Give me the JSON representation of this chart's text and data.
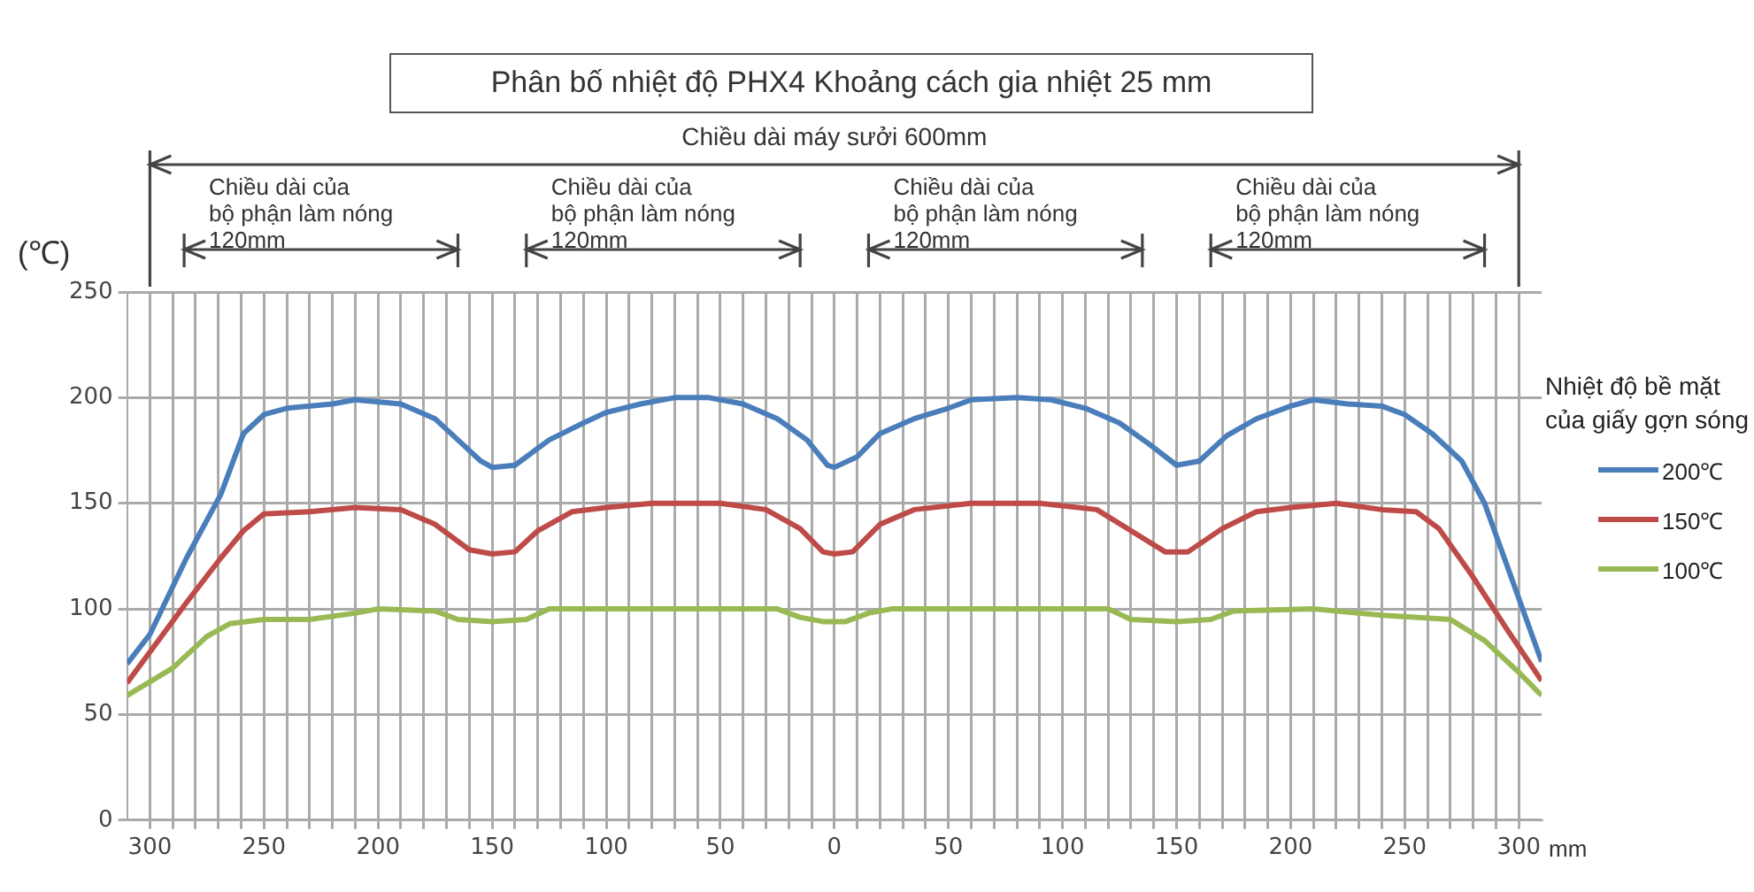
{
  "chart_data": {
    "type": "line",
    "title": "Phân bố nhiệt độ PHX4 Khoảng cách gia nhiệt 25 mm",
    "xlabel": "mm",
    "ylabel": "(℃)",
    "legend_title": "Nhiệt độ bề mặt của giấy gợn sóng",
    "legend": "right",
    "grid": true,
    "annotations": [
      "Chiều dài máy sưởi 600mm",
      "Chiều dài của\nbộ phận làm nóng\n120mm",
      "Chiều dài của\nbộ phận làm nóng\n120mm",
      "Chiều dài của\nbộ phận làm nóng\n120mm",
      "Chiều dài của\nbộ phận làm nóng\n120mm"
    ],
    "xlim": [
      -310,
      310
    ],
    "ylim": [
      0,
      250
    ],
    "yticks": [
      0,
      50,
      100,
      150,
      200,
      250
    ],
    "xticks": [
      {
        "value": -300,
        "label": "300"
      },
      {
        "value": -290,
        "label": null
      },
      {
        "value": -280,
        "label": null
      },
      {
        "value": -270,
        "label": null
      },
      {
        "value": -260,
        "label": null
      },
      {
        "value": -250,
        "label": "250"
      },
      {
        "value": -240,
        "label": null
      },
      {
        "value": -230,
        "label": null
      },
      {
        "value": -220,
        "label": null
      },
      {
        "value": -210,
        "label": null
      },
      {
        "value": -200,
        "label": "200"
      },
      {
        "value": -190,
        "label": null
      },
      {
        "value": -180,
        "label": null
      },
      {
        "value": -170,
        "label": null
      },
      {
        "value": -160,
        "label": null
      },
      {
        "value": -150,
        "label": "150"
      },
      {
        "value": -140,
        "label": null
      },
      {
        "value": -130,
        "label": null
      },
      {
        "value": -120,
        "label": null
      },
      {
        "value": -110,
        "label": null
      },
      {
        "value": -100,
        "label": "100"
      },
      {
        "value": -90,
        "label": null
      },
      {
        "value": -80,
        "label": null
      },
      {
        "value": -70,
        "label": null
      },
      {
        "value": -60,
        "label": null
      },
      {
        "value": -50,
        "label": "50"
      },
      {
        "value": -40,
        "label": null
      },
      {
        "value": -30,
        "label": null
      },
      {
        "value": -20,
        "label": null
      },
      {
        "value": -10,
        "label": null
      },
      0,
      {
        "value": 10,
        "label": null
      },
      {
        "value": 20,
        "label": null
      },
      {
        "value": 30,
        "label": null
      },
      {
        "value": 40,
        "label": null
      },
      50,
      {
        "value": 60,
        "label": null
      },
      {
        "value": 70,
        "label": null
      },
      {
        "value": 80,
        "label": null
      },
      {
        "value": 90,
        "label": null
      },
      100,
      {
        "value": 110,
        "label": null
      },
      {
        "value": 120,
        "label": null
      },
      {
        "value": 130,
        "label": null
      },
      {
        "value": 140,
        "label": null
      },
      150,
      {
        "value": 160,
        "label": null
      },
      {
        "value": 170,
        "label": null
      },
      {
        "value": 180,
        "label": null
      },
      {
        "value": 190,
        "label": null
      },
      200,
      {
        "value": 210,
        "label": null
      },
      {
        "value": 220,
        "label": null
      },
      {
        "value": 230,
        "label": null
      },
      {
        "value": 240,
        "label": null
      },
      250,
      {
        "value": 260,
        "label": null
      },
      {
        "value": 270,
        "label": null
      },
      {
        "value": 280,
        "label": null
      },
      {
        "value": 290,
        "label": null
      },
      300
    ],
    "series": [
      {
        "name": "200℃",
        "color": "#4a7ebb",
        "x": [
          -310,
          -300,
          -284,
          -269,
          -259,
          -250,
          -240,
          -220,
          -210,
          -190,
          -175,
          -165,
          -155,
          -150,
          -140,
          -125,
          -110,
          -100,
          -85,
          -70,
          -55,
          -40,
          -25,
          -12,
          -3,
          0,
          10,
          20,
          35,
          50,
          60,
          80,
          95,
          110,
          125,
          138,
          150,
          160,
          172,
          185,
          200,
          210,
          225,
          240,
          250,
          262,
          275,
          285,
          295,
          305,
          310
        ],
        "values": [
          74,
          88,
          124,
          154,
          183,
          192,
          195,
          197,
          199,
          197,
          190,
          180,
          170,
          167,
          168,
          180,
          188,
          193,
          197,
          200,
          200,
          197,
          190,
          180,
          168,
          167,
          172,
          183,
          190,
          195,
          199,
          200,
          199,
          195,
          188,
          178,
          168,
          170,
          182,
          190,
          196,
          199,
          197,
          196,
          192,
          183,
          170,
          150,
          120,
          90,
          75
        ]
      },
      {
        "name": "150℃",
        "color": "#be4b48",
        "x": [
          -310,
          -284,
          -269,
          -259,
          -250,
          -230,
          -210,
          -190,
          -175,
          -160,
          -150,
          -140,
          -130,
          -115,
          -100,
          -80,
          -50,
          -30,
          -15,
          -5,
          0,
          8,
          20,
          35,
          60,
          90,
          115,
          130,
          145,
          155,
          170,
          185,
          200,
          220,
          240,
          255,
          265,
          280,
          295,
          310
        ],
        "values": [
          65,
          103,
          124,
          137,
          145,
          146,
          148,
          147,
          140,
          128,
          126,
          127,
          137,
          146,
          148,
          150,
          150,
          147,
          138,
          127,
          126,
          127,
          140,
          147,
          150,
          150,
          147,
          137,
          127,
          127,
          138,
          146,
          148,
          150,
          147,
          146,
          138,
          115,
          90,
          66
        ]
      },
      {
        "name": "100℃",
        "color": "#98b954",
        "x": [
          -310,
          -290,
          -275,
          -265,
          -250,
          -230,
          -210,
          -200,
          -175,
          -165,
          -150,
          -135,
          -125,
          -100,
          -25,
          -15,
          -5,
          5,
          15,
          25,
          120,
          130,
          150,
          165,
          175,
          210,
          240,
          270,
          285,
          300,
          310
        ],
        "values": [
          59,
          72,
          87,
          93,
          95,
          95,
          98,
          100,
          99,
          95,
          94,
          95,
          100,
          100,
          100,
          96,
          94,
          94,
          98,
          100,
          100,
          95,
          94,
          95,
          99,
          100,
          97,
          95,
          85,
          70,
          59
        ]
      }
    ]
  }
}
